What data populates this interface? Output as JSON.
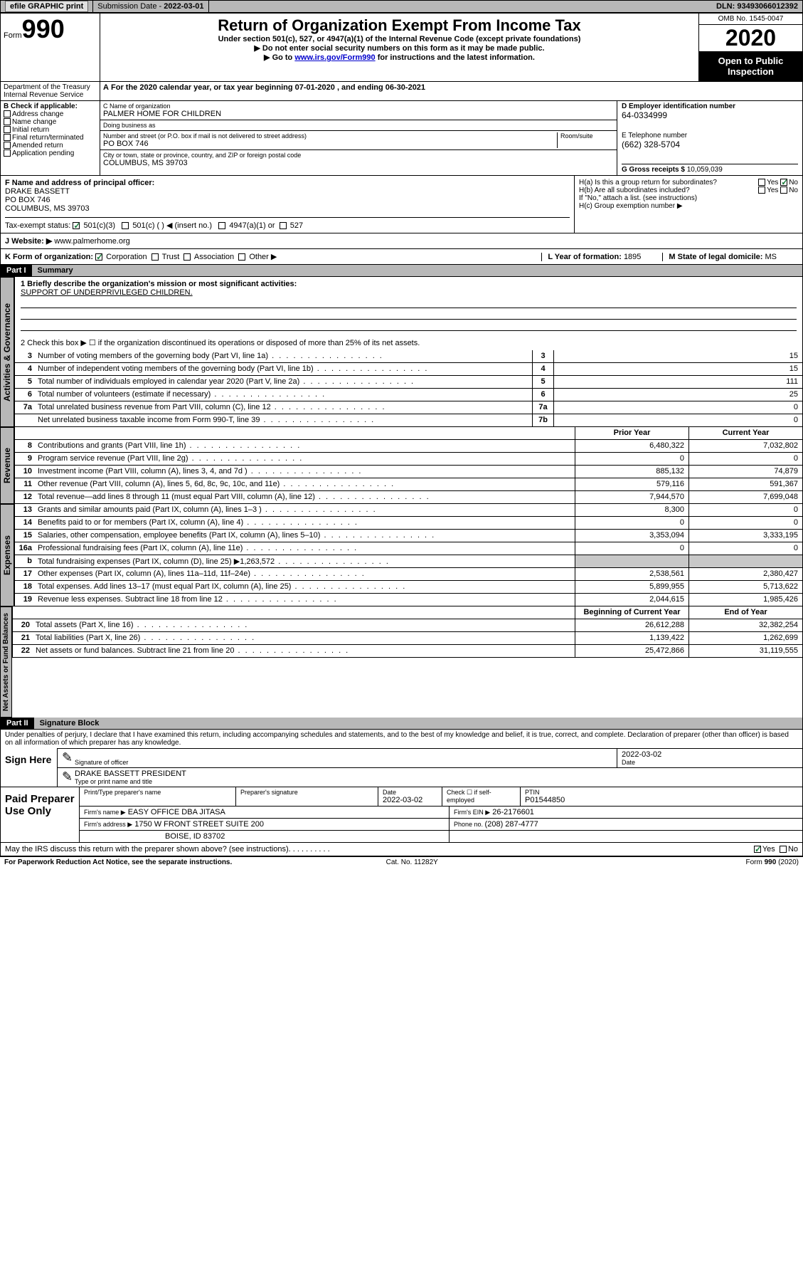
{
  "topbar": {
    "efile": "efile GRAPHIC print",
    "subdate_lbl": "Submission Date - ",
    "subdate": "2022-03-01",
    "dln_lbl": "DLN: ",
    "dln": "93493066012392"
  },
  "header": {
    "form_word": "Form",
    "form_num": "990",
    "dept1": "Department of the Treasury",
    "dept2": "Internal Revenue Service",
    "title": "Return of Organization Exempt From Income Tax",
    "sub1": "Under section 501(c), 527, or 4947(a)(1) of the Internal Revenue Code (except private foundations)",
    "sub2": "Do not enter social security numbers on this form as it may be made public.",
    "sub3_pre": "Go to ",
    "sub3_link": "www.irs.gov/Form990",
    "sub3_post": " for instructions and the latest information.",
    "omb": "OMB No. 1545-0047",
    "year": "2020",
    "pub": "Open to Public Inspection"
  },
  "period": {
    "text": "For the 2020 calendar year, or tax year beginning 07-01-2020   , and ending 06-30-2021"
  },
  "boxB": {
    "lbl": "B Check if applicable:",
    "opts": [
      "Address change",
      "Name change",
      "Initial return",
      "Final return/terminated",
      "Amended return",
      "Application pending"
    ]
  },
  "boxC": {
    "name_lbl": "C Name of organization",
    "name": "PALMER HOME FOR CHILDREN",
    "dba_lbl": "Doing business as",
    "dba": "",
    "addr_lbl": "Number and street (or P.O. box if mail is not delivered to street address)",
    "room_lbl": "Room/suite",
    "addr": "PO BOX 746",
    "city_lbl": "City or town, state or province, country, and ZIP or foreign postal code",
    "city": "COLUMBUS, MS  39703"
  },
  "boxD": {
    "lbl": "D Employer identification number",
    "val": "64-0334999"
  },
  "boxE": {
    "lbl": "E Telephone number",
    "val": "(662) 328-5704"
  },
  "boxG": {
    "lbl": "G Gross receipts $ ",
    "val": "10,059,039"
  },
  "boxF": {
    "lbl": "F  Name and address of principal officer:",
    "name": "DRAKE BASSETT",
    "addr1": "PO BOX 746",
    "addr2": "COLUMBUS, MS  39703"
  },
  "boxH": {
    "a": "H(a)  Is this a group return for subordinates?",
    "b": "H(b)  Are all subordinates included?",
    "b_note": "If \"No,\" attach a list. (see instructions)",
    "c": "H(c)  Group exemption number ▶",
    "yes": "Yes",
    "no": "No"
  },
  "boxI": {
    "lbl": "Tax-exempt status:",
    "opts": [
      "501(c)(3)",
      "501(c) (  ) ◀ (insert no.)",
      "4947(a)(1) or",
      "527"
    ]
  },
  "boxJ": {
    "lbl": "J   Website: ▶",
    "val": "www.palmerhome.org"
  },
  "boxK": {
    "lbl": "K Form of organization:",
    "opts": [
      "Corporation",
      "Trust",
      "Association",
      "Other ▶"
    ]
  },
  "boxL": {
    "lbl": "L Year of formation: ",
    "val": "1895"
  },
  "boxM": {
    "lbl": "M State of legal domicile: ",
    "val": "MS"
  },
  "part1": {
    "hdr": "Part I",
    "title": "Summary",
    "tab": "Activities & Governance",
    "line1_lbl": "1  Briefly describe the organization's mission or most significant activities:",
    "line1_val": "SUPPORT OF UNDERPRIVILEGED CHILDREN.",
    "line2": "2    Check this box ▶ ☐  if the organization discontinued its operations or disposed of more than 25% of its net assets.",
    "rows": [
      {
        "n": "3",
        "d": "Number of voting members of the governing body (Part VI, line 1a)",
        "b": "3",
        "v": "15"
      },
      {
        "n": "4",
        "d": "Number of independent voting members of the governing body (Part VI, line 1b)",
        "b": "4",
        "v": "15"
      },
      {
        "n": "5",
        "d": "Total number of individuals employed in calendar year 2020 (Part V, line 2a)",
        "b": "5",
        "v": "111"
      },
      {
        "n": "6",
        "d": "Total number of volunteers (estimate if necessary)",
        "b": "6",
        "v": "25"
      },
      {
        "n": "7a",
        "d": "Total unrelated business revenue from Part VIII, column (C), line 12",
        "b": "7a",
        "v": "0"
      },
      {
        "n": "",
        "d": "Net unrelated business taxable income from Form 990-T, line 39",
        "b": "7b",
        "v": "0"
      }
    ]
  },
  "revenue": {
    "tab": "Revenue",
    "hdr_prior": "Prior Year",
    "hdr_curr": "Current Year",
    "rows": [
      {
        "n": "8",
        "d": "Contributions and grants (Part VIII, line 1h)",
        "p": "6,480,322",
        "c": "7,032,802"
      },
      {
        "n": "9",
        "d": "Program service revenue (Part VIII, line 2g)",
        "p": "0",
        "c": "0"
      },
      {
        "n": "10",
        "d": "Investment income (Part VIII, column (A), lines 3, 4, and 7d )",
        "p": "885,132",
        "c": "74,879"
      },
      {
        "n": "11",
        "d": "Other revenue (Part VIII, column (A), lines 5, 6d, 8c, 9c, 10c, and 11e)",
        "p": "579,116",
        "c": "591,367"
      },
      {
        "n": "12",
        "d": "Total revenue—add lines 8 through 11 (must equal Part VIII, column (A), line 12)",
        "p": "7,944,570",
        "c": "7,699,048"
      }
    ]
  },
  "expenses": {
    "tab": "Expenses",
    "rows": [
      {
        "n": "13",
        "d": "Grants and similar amounts paid (Part IX, column (A), lines 1–3 )",
        "p": "8,300",
        "c": "0"
      },
      {
        "n": "14",
        "d": "Benefits paid to or for members (Part IX, column (A), line 4)",
        "p": "0",
        "c": "0"
      },
      {
        "n": "15",
        "d": "Salaries, other compensation, employee benefits (Part IX, column (A), lines 5–10)",
        "p": "3,353,094",
        "c": "3,333,195"
      },
      {
        "n": "16a",
        "d": "Professional fundraising fees (Part IX, column (A), line 11e)",
        "p": "0",
        "c": "0"
      },
      {
        "n": "b",
        "d": "Total fundraising expenses (Part IX, column (D), line 25) ▶1,263,572",
        "p": "",
        "c": "",
        "shade": true
      },
      {
        "n": "17",
        "d": "Other expenses (Part IX, column (A), lines 11a–11d, 11f–24e)",
        "p": "2,538,561",
        "c": "2,380,427"
      },
      {
        "n": "18",
        "d": "Total expenses. Add lines 13–17 (must equal Part IX, column (A), line 25)",
        "p": "5,899,955",
        "c": "5,713,622"
      },
      {
        "n": "19",
        "d": "Revenue less expenses. Subtract line 18 from line 12",
        "p": "2,044,615",
        "c": "1,985,426"
      }
    ]
  },
  "netassets": {
    "tab": "Net Assets or Fund Balances",
    "hdr_beg": "Beginning of Current Year",
    "hdr_end": "End of Year",
    "rows": [
      {
        "n": "20",
        "d": "Total assets (Part X, line 16)",
        "p": "26,612,288",
        "c": "32,382,254"
      },
      {
        "n": "21",
        "d": "Total liabilities (Part X, line 26)",
        "p": "1,139,422",
        "c": "1,262,699"
      },
      {
        "n": "22",
        "d": "Net assets or fund balances. Subtract line 21 from line 20",
        "p": "25,472,866",
        "c": "31,119,555"
      }
    ]
  },
  "part2": {
    "hdr": "Part II",
    "title": "Signature Block",
    "decl": "Under penalties of perjury, I declare that I have examined this return, including accompanying schedules and statements, and to the best of my knowledge and belief, it is true, correct, and complete. Declaration of preparer (other than officer) is based on all information of which preparer has any knowledge."
  },
  "sign": {
    "lbl": "Sign Here",
    "sig_lbl": "Signature of officer",
    "date_lbl": "Date",
    "date": "2022-03-02",
    "name": "DRAKE BASSETT PRESIDENT",
    "name_lbl": "Type or print name and title"
  },
  "prep": {
    "lbl": "Paid Preparer Use Only",
    "h1": "Print/Type preparer's name",
    "h2": "Preparer's signature",
    "h3": "Date",
    "h3v": "2022-03-02",
    "h4": "Check ☐ if self-employed",
    "h5": "PTIN",
    "h5v": "P01544850",
    "firm_lbl": "Firm's name    ▶",
    "firm": "EASY OFFICE DBA JITASA",
    "ein_lbl": "Firm's EIN ▶",
    "ein": "26-2176601",
    "addr_lbl": "Firm's address ▶",
    "addr1": "1750 W FRONT STREET SUITE 200",
    "addr2": "BOISE, ID  83702",
    "phone_lbl": "Phone no. ",
    "phone": "(208) 287-4777"
  },
  "discuss": {
    "q": "May the IRS discuss this return with the preparer shown above? (see instructions)",
    "yes": "Yes",
    "no": "No"
  },
  "footer": {
    "pra": "For Paperwork Reduction Act Notice, see the separate instructions.",
    "cat": "Cat. No. 11282Y",
    "form": "Form 990 (2020)"
  }
}
